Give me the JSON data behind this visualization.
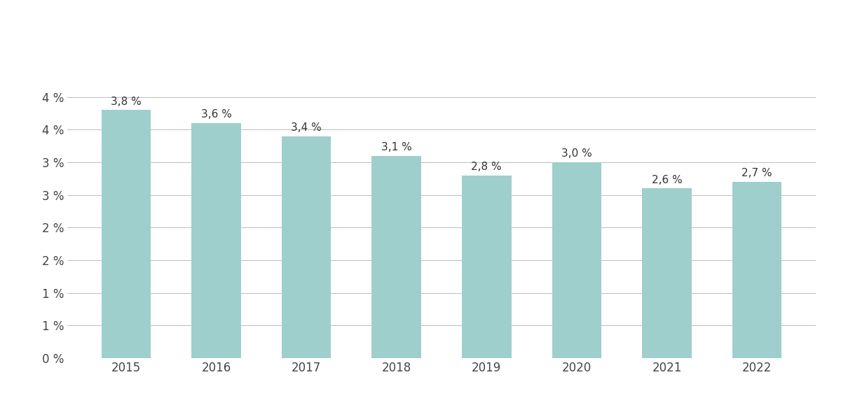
{
  "years": [
    "2015",
    "2016",
    "2017",
    "2018",
    "2019",
    "2020",
    "2021",
    "2022"
  ],
  "values": [
    3.8,
    3.6,
    3.4,
    3.1,
    2.8,
    3.0,
    2.6,
    2.7
  ],
  "bar_color": "#9ecfcc",
  "bar_edge_color": "none",
  "ylim": [
    0,
    5.0
  ],
  "yticks": [
    0,
    0.5,
    1.0,
    1.5,
    2.0,
    2.5,
    3.0,
    3.5,
    4.0
  ],
  "ytick_labels": [
    "0 %",
    "1 %",
    "1 %",
    "2 %",
    "2 %",
    "3 %",
    "3 %",
    "4 %",
    "4 %"
  ],
  "grid_color": "#bbbbbb",
  "background_color": "#ffffff",
  "bar_width": 0.55,
  "label_fontsize": 11,
  "tick_fontsize": 12
}
